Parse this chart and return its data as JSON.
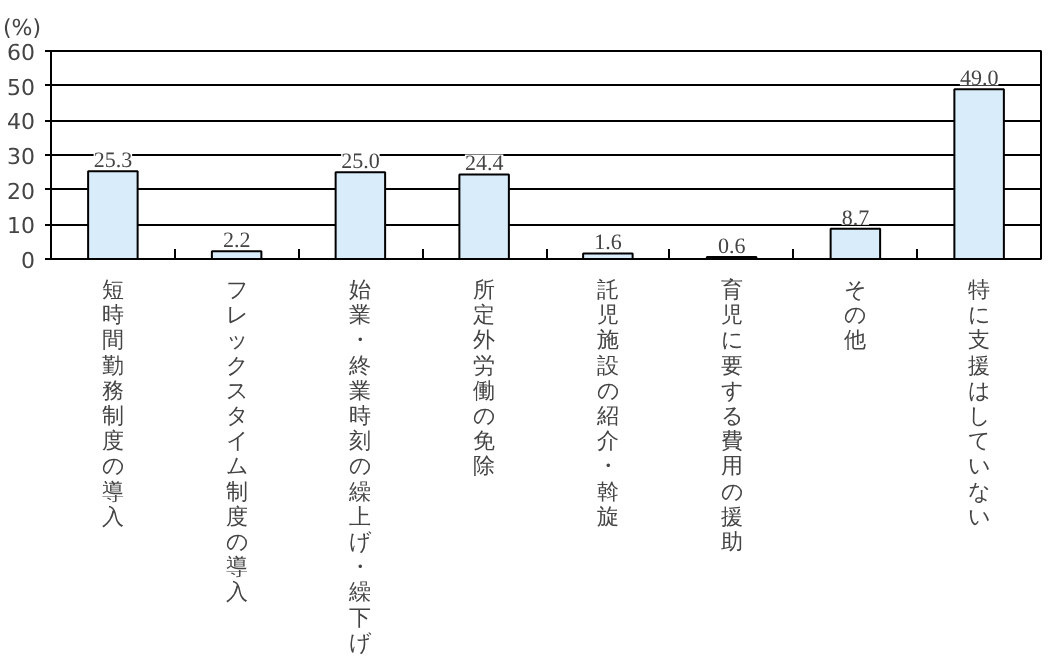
{
  "chart_data": {
    "type": "bar",
    "ylabel": "(%)",
    "categories": [
      "短時間勤務制度の導入",
      "フレックスタイム制度の導入",
      "始業・終業時刻の繰上げ・繰下げ",
      "所定外労働の免除",
      "託児施設の紹介・斡旋",
      "育児に要する費用の援助",
      "その他",
      "特に支援はしていない"
    ],
    "values": [
      25.3,
      2.2,
      25.0,
      24.4,
      1.6,
      0.6,
      8.7,
      49.0
    ],
    "value_labels": [
      "25.3",
      "2.2",
      "25.0",
      "24.4",
      "1.6",
      "0.6",
      "8.7",
      "49.0"
    ],
    "color": "#d9ecf9",
    "ylim": [
      0,
      60
    ],
    "yticks": [
      0,
      10,
      20,
      30,
      40,
      50,
      60
    ],
    "grid": "y"
  }
}
